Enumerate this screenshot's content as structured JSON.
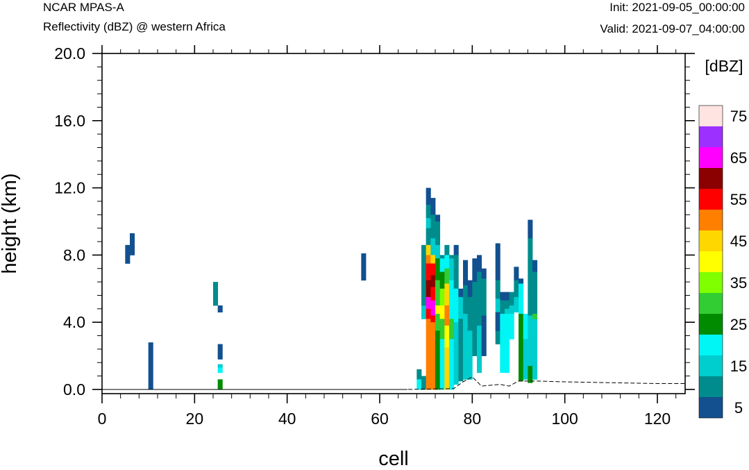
{
  "header": {
    "left_title": "NCAR MPAS-A",
    "left_subtitle": "Reflectivity (dBZ) @ western Africa",
    "right_init": "Init: 2021-09-05_00:00:00",
    "right_valid": "Valid: 2021-09-07_04:00:00"
  },
  "chart_data": {
    "type": "heatmap",
    "xlabel": "cell",
    "ylabel": "height (km)",
    "xlim": [
      0,
      126
    ],
    "ylim": [
      -0.25,
      20.0
    ],
    "xticks": [
      "0",
      "20",
      "40",
      "60",
      "80",
      "100",
      "120"
    ],
    "yticks": [
      "0.0",
      "4.0",
      "8.0",
      "12.0",
      "16.0",
      "20.0"
    ],
    "colorbar": {
      "label": "[dBZ]",
      "levels": [
        5,
        10,
        15,
        20,
        25,
        30,
        35,
        40,
        45,
        50,
        55,
        60,
        65,
        70,
        75
      ],
      "tick_labels": [
        "5",
        "15",
        "25",
        "35",
        "45",
        "55",
        "65",
        "75"
      ],
      "colors": [
        "#12508f",
        "#008c8c",
        "#00cdcd",
        "#00f5f5",
        "#008b00",
        "#32cd32",
        "#7fff00",
        "#ffff00",
        "#ffd700",
        "#ff7f00",
        "#ff0000",
        "#8b0000",
        "#ff00ff",
        "#9b30ff",
        "#ffe4e1"
      ]
    },
    "terrain_km": [
      [
        0,
        0
      ],
      [
        66,
        0
      ],
      [
        76,
        0.05
      ],
      [
        78,
        0.45
      ],
      [
        80,
        0.75
      ],
      [
        82,
        0.2
      ],
      [
        86,
        0.3
      ],
      [
        88,
        0.2
      ],
      [
        90,
        0.5
      ],
      [
        94,
        0.5
      ],
      [
        100,
        0.45
      ],
      [
        110,
        0.4
      ],
      [
        120,
        0.35
      ],
      [
        126,
        0.35
      ]
    ],
    "cells": [
      [
        5,
        7.5,
        8.6,
        5
      ],
      [
        6,
        8.0,
        9.3,
        5
      ],
      [
        10,
        0,
        2.8,
        5
      ],
      [
        24,
        5.0,
        6.4,
        10
      ],
      [
        25,
        4.6,
        5.0,
        5
      ],
      [
        25,
        1.8,
        2.7,
        5
      ],
      [
        25,
        1.3,
        1.5,
        15
      ],
      [
        25,
        1.0,
        1.3,
        20
      ],
      [
        25,
        0,
        0.6,
        25
      ],
      [
        56,
        6.5,
        8.1,
        5
      ],
      [
        68,
        0.6,
        1.2,
        10
      ],
      [
        68,
        0,
        0.6,
        20
      ],
      [
        69,
        4.2,
        5.0,
        15
      ],
      [
        69,
        5.0,
        8.6,
        10
      ],
      [
        69,
        0,
        0.8,
        10
      ],
      [
        70,
        11.0,
        12.0,
        5
      ],
      [
        70,
        10.2,
        11.0,
        10
      ],
      [
        70,
        9.6,
        10.2,
        15
      ],
      [
        70,
        8.6,
        9.6,
        10
      ],
      [
        70,
        8.0,
        8.6,
        45
      ],
      [
        70,
        7.5,
        8.0,
        50
      ],
      [
        70,
        6.5,
        7.5,
        55
      ],
      [
        70,
        5.5,
        6.5,
        60
      ],
      [
        70,
        4.8,
        5.5,
        65
      ],
      [
        70,
        4.2,
        4.8,
        55
      ],
      [
        70,
        0,
        4.2,
        50
      ],
      [
        71,
        10.4,
        11.4,
        5
      ],
      [
        71,
        9.0,
        10.4,
        10
      ],
      [
        71,
        8.0,
        9.0,
        15
      ],
      [
        71,
        7.5,
        8.0,
        45
      ],
      [
        71,
        6.8,
        7.5,
        55
      ],
      [
        71,
        6.1,
        6.8,
        60
      ],
      [
        71,
        5.3,
        6.1,
        55
      ],
      [
        71,
        4.4,
        5.3,
        65
      ],
      [
        71,
        4.0,
        4.4,
        55
      ],
      [
        71,
        0,
        4.0,
        50
      ],
      [
        72,
        10.0,
        10.4,
        5
      ],
      [
        72,
        8.6,
        10.0,
        10
      ],
      [
        72,
        7.8,
        8.6,
        15
      ],
      [
        72,
        6.5,
        7.8,
        25
      ],
      [
        72,
        5.0,
        6.5,
        30
      ],
      [
        72,
        4.5,
        5.0,
        40
      ],
      [
        72,
        3.5,
        4.5,
        30
      ],
      [
        72,
        3.0,
        3.5,
        25
      ],
      [
        72,
        0,
        3.0,
        25
      ],
      [
        73,
        7.8,
        8.0,
        10
      ],
      [
        73,
        7.0,
        7.8,
        20
      ],
      [
        73,
        6.0,
        7.0,
        25
      ],
      [
        73,
        5.0,
        6.0,
        35
      ],
      [
        73,
        4.2,
        5.0,
        40
      ],
      [
        73,
        3.0,
        4.2,
        30
      ],
      [
        73,
        0,
        3.0,
        20
      ],
      [
        74,
        8.0,
        8.6,
        10
      ],
      [
        74,
        7.2,
        8.0,
        20
      ],
      [
        74,
        6.3,
        7.2,
        30
      ],
      [
        74,
        5.0,
        6.3,
        45
      ],
      [
        74,
        3.8,
        5.0,
        50
      ],
      [
        74,
        2.5,
        3.8,
        40
      ],
      [
        74,
        0,
        2.5,
        45
      ],
      [
        75,
        7.8,
        8.0,
        10
      ],
      [
        75,
        6.5,
        7.8,
        15
      ],
      [
        75,
        4.2,
        6.5,
        20
      ],
      [
        75,
        3.0,
        4.2,
        30
      ],
      [
        75,
        0,
        3.0,
        20
      ],
      [
        76,
        8.0,
        8.6,
        5
      ],
      [
        76,
        6.0,
        8.0,
        10
      ],
      [
        76,
        4.0,
        6.0,
        20
      ],
      [
        76,
        0.3,
        4.0,
        15
      ],
      [
        77,
        5.5,
        6.0,
        5
      ],
      [
        77,
        4.2,
        5.5,
        15
      ],
      [
        77,
        0.5,
        4.2,
        10
      ],
      [
        78,
        6.2,
        7.7,
        5
      ],
      [
        78,
        4.5,
        6.2,
        10
      ],
      [
        78,
        0.6,
        4.5,
        15
      ],
      [
        79,
        5.5,
        6.5,
        5
      ],
      [
        79,
        3.5,
        5.5,
        10
      ],
      [
        79,
        0.6,
        3.5,
        15
      ],
      [
        80,
        6.4,
        7.8,
        5
      ],
      [
        80,
        5.3,
        6.4,
        10
      ],
      [
        80,
        2.0,
        5.3,
        10
      ],
      [
        81,
        7.0,
        8.0,
        5
      ],
      [
        81,
        3.8,
        7.0,
        10
      ],
      [
        81,
        1.0,
        3.8,
        15
      ],
      [
        82,
        6.6,
        7.2,
        5
      ],
      [
        82,
        4.4,
        6.6,
        10
      ],
      [
        82,
        2.0,
        4.4,
        5
      ],
      [
        85,
        6.5,
        8.7,
        5
      ],
      [
        85,
        5.4,
        6.5,
        10
      ],
      [
        85,
        3.5,
        5.4,
        15
      ],
      [
        85,
        2.7,
        3.5,
        10
      ],
      [
        85,
        3.5,
        4.6,
        5
      ],
      [
        86,
        5.3,
        5.8,
        5
      ],
      [
        86,
        4.5,
        5.3,
        10
      ],
      [
        86,
        3.0,
        4.5,
        20
      ],
      [
        86,
        1.0,
        3.0,
        20
      ],
      [
        87,
        5.3,
        5.8,
        5
      ],
      [
        87,
        4.8,
        5.3,
        10
      ],
      [
        87,
        4.5,
        4.8,
        15
      ],
      [
        87,
        1.0,
        4.5,
        20
      ],
      [
        88,
        5.0,
        5.8,
        10
      ],
      [
        88,
        4.5,
        5.0,
        15
      ],
      [
        88,
        3.0,
        4.5,
        20
      ],
      [
        89,
        6.5,
        7.3,
        5
      ],
      [
        89,
        5.5,
        6.5,
        10
      ],
      [
        89,
        4.6,
        5.5,
        15
      ],
      [
        90,
        6.3,
        6.6,
        5
      ],
      [
        90,
        4.5,
        6.3,
        20
      ],
      [
        90,
        2.0,
        4.5,
        15
      ],
      [
        90,
        0.5,
        4.5,
        25
      ],
      [
        91,
        3.0,
        4.5,
        20
      ],
      [
        91,
        0.6,
        3.0,
        15
      ],
      [
        92,
        9.0,
        10.1,
        5
      ],
      [
        92,
        7.6,
        9.0,
        10
      ],
      [
        92,
        6.0,
        7.6,
        10
      ],
      [
        92,
        4.4,
        6.0,
        10
      ],
      [
        92,
        0.6,
        4.4,
        15
      ],
      [
        92,
        0.4,
        1.4,
        25
      ],
      [
        93,
        7.0,
        7.7,
        5
      ],
      [
        93,
        4.5,
        7.0,
        10
      ],
      [
        93,
        0.6,
        4.5,
        15
      ],
      [
        93,
        4.2,
        4.5,
        30
      ]
    ]
  }
}
